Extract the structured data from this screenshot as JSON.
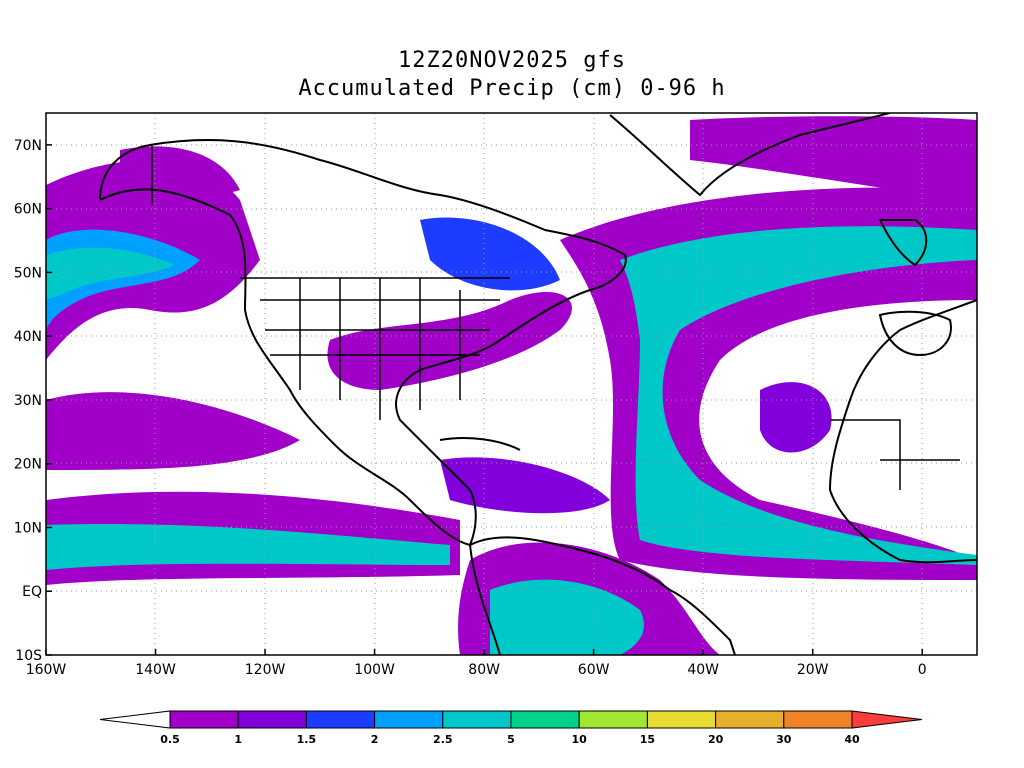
{
  "title": {
    "line1": "12Z20NOV2025 gfs",
    "line2": "Accumulated Precip (cm) 0-96 h"
  },
  "map": {
    "lon_range": [
      -160,
      10
    ],
    "lat_range": [
      -10,
      75
    ],
    "lon_ticks": [
      {
        "value": -160,
        "label": "160W"
      },
      {
        "value": -140,
        "label": "140W"
      },
      {
        "value": -120,
        "label": "120W"
      },
      {
        "value": -100,
        "label": "100W"
      },
      {
        "value": -80,
        "label": "80W"
      },
      {
        "value": -60,
        "label": "60W"
      },
      {
        "value": -40,
        "label": "40W"
      },
      {
        "value": -20,
        "label": "20W"
      },
      {
        "value": 0,
        "label": "0"
      }
    ],
    "lat_ticks": [
      {
        "value": 70,
        "label": "70N"
      },
      {
        "value": 60,
        "label": "60N"
      },
      {
        "value": 50,
        "label": "50N"
      },
      {
        "value": 40,
        "label": "40N"
      },
      {
        "value": 30,
        "label": "30N"
      },
      {
        "value": 20,
        "label": "20N"
      },
      {
        "value": 10,
        "label": "10N"
      },
      {
        "value": 0,
        "label": "EQ"
      },
      {
        "value": -10,
        "label": "10S"
      }
    ],
    "grid": true
  },
  "colorbar": {
    "levels": [
      "0.5",
      "1",
      "1.5",
      "2",
      "2.5",
      "5",
      "10",
      "15",
      "20",
      "30",
      "40"
    ],
    "colors": [
      "#ffffff",
      "#a000c8",
      "#8200dc",
      "#1e3cff",
      "#00a0ff",
      "#00c8c8",
      "#00d28c",
      "#a0e632",
      "#e6dc32",
      "#e6af2d",
      "#f08228",
      "#fa3c3c"
    ]
  }
}
